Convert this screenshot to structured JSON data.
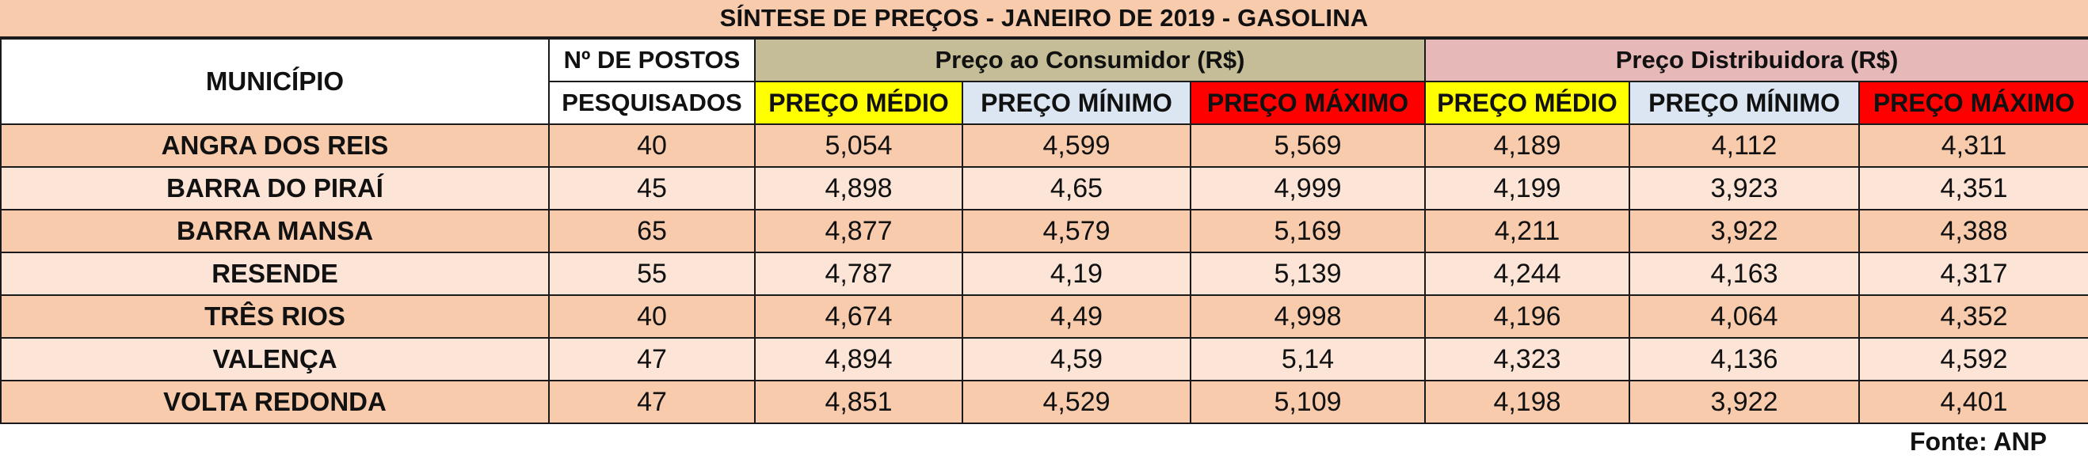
{
  "title": "SÍNTESE DE PREÇOS - JANEIRO DE 2019 - GASOLINA",
  "headers": {
    "municipio": "MUNICÍPIO",
    "postos_line1": "Nº DE POSTOS",
    "postos_line2": "PESQUISADOS",
    "group_consumer": "Preço ao Consumidor (R$)",
    "group_distrib": "Preço Distribuidora (R$)",
    "medio": "PREÇO MÉDIO",
    "minimo": "PREÇO MÍNIMO",
    "maximo": "PREÇO MÁXIMO"
  },
  "colors": {
    "title_bg": "#f8cbad",
    "row_dark": "#f8cbad",
    "row_light": "#fce4d6",
    "consumer_bg": "#c4bd97",
    "distrib_bg": "#e6b9b8",
    "medio_bg": "#ffff00",
    "minimo_bg": "#dce6f2",
    "maximo_bg": "#ff0000"
  },
  "rows": [
    {
      "municipio": "ANGRA DOS REIS",
      "postos": "40",
      "c_medio": "5,054",
      "c_minimo": "4,599",
      "c_maximo": "5,569",
      "d_medio": "4,189",
      "d_minimo": "4,112",
      "d_maximo": "4,311"
    },
    {
      "municipio": "BARRA DO PIRAÍ",
      "postos": "45",
      "c_medio": "4,898",
      "c_minimo": "4,65",
      "c_maximo": "4,999",
      "d_medio": "4,199",
      "d_minimo": "3,923",
      "d_maximo": "4,351"
    },
    {
      "municipio": "BARRA MANSA",
      "postos": "65",
      "c_medio": "4,877",
      "c_minimo": "4,579",
      "c_maximo": "5,169",
      "d_medio": "4,211",
      "d_minimo": "3,922",
      "d_maximo": "4,388"
    },
    {
      "municipio": "RESENDE",
      "postos": "55",
      "c_medio": "4,787",
      "c_minimo": "4,19",
      "c_maximo": "5,139",
      "d_medio": "4,244",
      "d_minimo": "4,163",
      "d_maximo": "4,317"
    },
    {
      "municipio": "TRÊS RIOS",
      "postos": "40",
      "c_medio": "4,674",
      "c_minimo": "4,49",
      "c_maximo": "4,998",
      "d_medio": "4,196",
      "d_minimo": "4,064",
      "d_maximo": "4,352"
    },
    {
      "municipio": "VALENÇA",
      "postos": "47",
      "c_medio": "4,894",
      "c_minimo": "4,59",
      "c_maximo": "5,14",
      "d_medio": "4,323",
      "d_minimo": "4,136",
      "d_maximo": "4,592"
    },
    {
      "municipio": "VOLTA REDONDA",
      "postos": "47",
      "c_medio": "4,851",
      "c_minimo": "4,529",
      "c_maximo": "5,109",
      "d_medio": "4,198",
      "d_minimo": "3,922",
      "d_maximo": "4,401"
    }
  ],
  "source": "Fonte: ANP"
}
